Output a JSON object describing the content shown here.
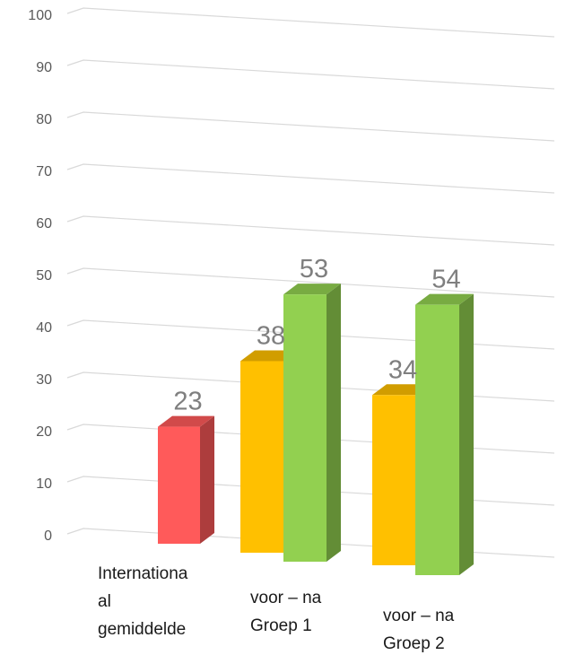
{
  "chart_data": {
    "type": "bar",
    "title": "",
    "xlabel": "",
    "ylabel": "",
    "ylim": [
      0,
      100
    ],
    "yticks": [
      0,
      10,
      20,
      30,
      40,
      50,
      60,
      70,
      80,
      90,
      100
    ],
    "grid": true,
    "legend": "none",
    "categories": [
      {
        "lines": [
          "Internationa",
          "al",
          "gemiddelde"
        ]
      },
      {
        "lines": [
          "voor – na",
          "Groep 1"
        ]
      },
      {
        "lines": [
          "voor – na",
          "Groep 2"
        ]
      }
    ],
    "bars": [
      {
        "category": 0,
        "value": 23,
        "color": "#ff5a5a"
      },
      {
        "category": 1,
        "value": 38,
        "color": "#ffc000"
      },
      {
        "category": 1,
        "value": 53,
        "color": "#92d050"
      },
      {
        "category": 2,
        "value": 34,
        "color": "#ffc000"
      },
      {
        "category": 2,
        "value": 54,
        "color": "#92d050"
      }
    ]
  }
}
